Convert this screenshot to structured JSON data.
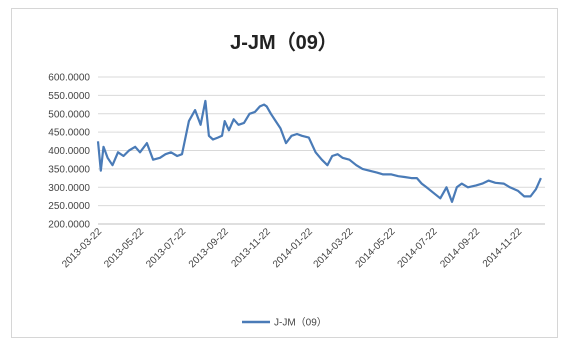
{
  "chart_data": {
    "type": "line",
    "title": "J-JM（09）",
    "xlabel": "",
    "ylabel": "",
    "ylim": [
      200,
      600
    ],
    "yticks": [
      "600.0000",
      "550.0000",
      "500.0000",
      "450.0000",
      "400.0000",
      "350.0000",
      "300.0000",
      "250.0000",
      "200.0000"
    ],
    "ytick_values": [
      600,
      550,
      500,
      450,
      400,
      350,
      300,
      250,
      200
    ],
    "xticks": [
      "2013-03-22",
      "2013-05-22",
      "2013-07-22",
      "2013-09-22",
      "2013-11-22",
      "2014-01-22",
      "2014-03-22",
      "2014-05-22",
      "2014-07-22",
      "2014-09-22",
      "2014-11-22"
    ],
    "grid": true,
    "legend": "bottom",
    "series": [
      {
        "name": "J-JM（09）",
        "color": "#4a7bb7",
        "x": [
          "2013-03-22",
          "2013-03-26",
          "2013-03-30",
          "2013-04-05",
          "2013-04-12",
          "2013-04-20",
          "2013-04-28",
          "2013-05-06",
          "2013-05-15",
          "2013-05-22",
          "2013-06-01",
          "2013-06-10",
          "2013-06-20",
          "2013-06-28",
          "2013-07-06",
          "2013-07-15",
          "2013-07-22",
          "2013-08-01",
          "2013-08-10",
          "2013-08-18",
          "2013-08-25",
          "2013-08-30",
          "2013-09-05",
          "2013-09-12",
          "2013-09-18",
          "2013-09-22",
          "2013-09-28",
          "2013-10-05",
          "2013-10-12",
          "2013-10-20",
          "2013-10-28",
          "2013-11-05",
          "2013-11-12",
          "2013-11-18",
          "2013-11-22",
          "2013-11-28",
          "2013-12-05",
          "2013-12-12",
          "2013-12-20",
          "2013-12-28",
          "2014-01-05",
          "2014-01-12",
          "2014-01-22",
          "2014-02-01",
          "2014-02-10",
          "2014-02-18",
          "2014-02-25",
          "2014-03-05",
          "2014-03-12",
          "2014-03-22",
          "2014-04-01",
          "2014-04-10",
          "2014-04-20",
          "2014-05-01",
          "2014-05-10",
          "2014-05-22",
          "2014-06-01",
          "2014-06-10",
          "2014-06-20",
          "2014-06-28",
          "2014-07-05",
          "2014-07-12",
          "2014-07-22",
          "2014-08-01",
          "2014-08-10",
          "2014-08-18",
          "2014-08-25",
          "2014-09-01",
          "2014-09-10",
          "2014-09-22",
          "2014-10-01",
          "2014-10-10",
          "2014-10-20",
          "2014-11-01",
          "2014-11-10",
          "2014-11-22",
          "2014-12-01",
          "2014-12-10",
          "2014-12-18",
          "2014-12-25"
        ],
        "values": [
          425,
          345,
          410,
          380,
          360,
          395,
          385,
          400,
          410,
          395,
          420,
          375,
          380,
          390,
          395,
          385,
          390,
          480,
          510,
          470,
          535,
          440,
          430,
          435,
          440,
          480,
          455,
          485,
          470,
          475,
          500,
          505,
          520,
          525,
          520,
          500,
          480,
          460,
          420,
          440,
          445,
          440,
          435,
          395,
          375,
          360,
          385,
          390,
          380,
          375,
          360,
          350,
          345,
          340,
          335,
          335,
          330,
          328,
          325,
          325,
          310,
          300,
          285,
          270,
          300,
          260,
          300,
          310,
          300,
          305,
          310,
          318,
          312,
          310,
          300,
          290,
          275,
          275,
          295,
          325
        ]
      }
    ]
  }
}
